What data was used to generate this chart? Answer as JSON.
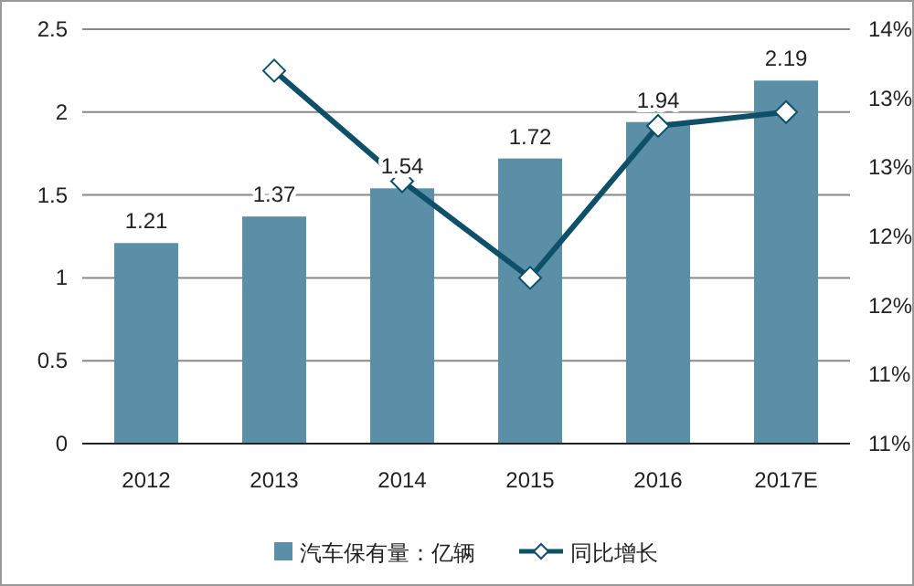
{
  "chart_data": {
    "type": "bar",
    "categories": [
      "2012",
      "2013",
      "2014",
      "2015",
      "2016",
      "2017E"
    ],
    "series": [
      {
        "name": "汽车保有量：亿辆",
        "color": "#5b8fa8",
        "values": [
          1.21,
          1.37,
          1.54,
          1.72,
          1.94,
          2.19
        ],
        "value_labels": [
          "1.21",
          "1.37",
          "1.54",
          "1.72",
          "1.94",
          "2.19"
        ]
      },
      {
        "name": "同比增长",
        "type": "line",
        "axis": "y2",
        "color": "#0d5068",
        "marker": "diamond",
        "values": [
          null,
          13.7,
          12.9,
          12.2,
          13.3,
          13.4
        ]
      }
    ],
    "ylim": [
      0,
      2.5
    ],
    "yticks": [
      0,
      0.5,
      1,
      1.5,
      2,
      2.5
    ],
    "y2lim": [
      11,
      14
    ],
    "y2ticks": [
      {
        "value": 11,
        "label": "11%"
      },
      {
        "value": 11.5,
        "label": "11%"
      },
      {
        "value": 12,
        "label": "12%"
      },
      {
        "value": 12.5,
        "label": "12%"
      },
      {
        "value": 13,
        "label": "13%"
      },
      {
        "value": 13.5,
        "label": "13%"
      },
      {
        "value": 14,
        "label": "14%"
      }
    ],
    "grid": "y",
    "legend": "bottom"
  }
}
